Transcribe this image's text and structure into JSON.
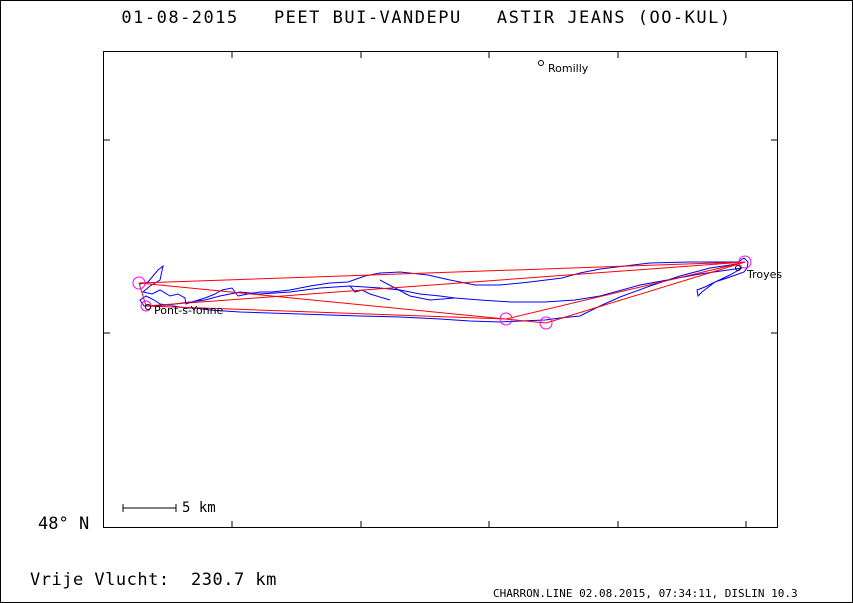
{
  "header": {
    "title": "01-08-2015   PEET BUI-VANDEPU   ASTIR JEANS (OO-KUL)"
  },
  "map": {
    "latitude_label": "48° N",
    "scale_label": "5 km",
    "places": [
      {
        "name": "Romilly"
      },
      {
        "name": "Troyes"
      },
      {
        "name": "Pont-s-Yonne"
      }
    ],
    "colors": {
      "track": "#0000ff",
      "task": "#ff0000",
      "turnpoint": "#ff00ff",
      "frame": "#000000"
    }
  },
  "summary": {
    "distance_text": "Vrije Vlucht:  230.7 km"
  },
  "footer": {
    "text": "CHARRON.LINE 02.08.2015, 07:34:11, DISLIN 10.3"
  }
}
